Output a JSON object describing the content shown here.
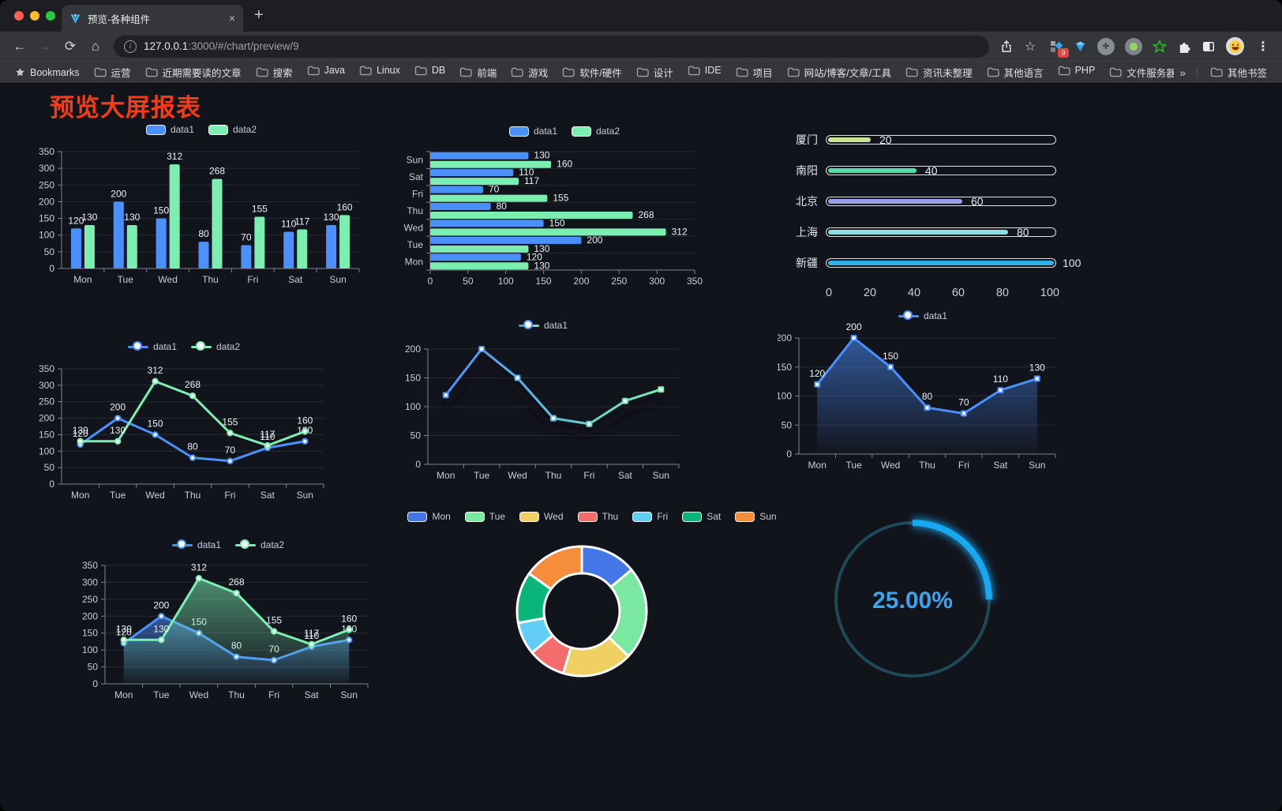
{
  "browser": {
    "tab_title": "预览-各种组件",
    "close_tab_label": "×",
    "new_tab_label": "+",
    "url_host": "127.0.0.1",
    "url_rest": ":3000/#/chart/preview/9",
    "icons": {
      "back": "←",
      "forward": "→",
      "reload": "⟳",
      "home": "⌂",
      "bookmark_star": "☆",
      "kebab": "⋮",
      "info": "i"
    },
    "extension_badge": "9",
    "bookmarks_bar": {
      "bookmarks_label": "Bookmarks",
      "folders": [
        "运营",
        "近期需要读的文章",
        "搜索",
        "Java",
        "Linux",
        "DB",
        "前端",
        "游戏",
        "软件/硬件",
        "设计",
        "IDE",
        "项目",
        "网站/博客/文章/工具",
        "资讯未整理",
        "其他语言",
        "PHP",
        "文件服务器"
      ],
      "overflow_label": "»",
      "other_bookmarks_label": "其他书签"
    }
  },
  "page": {
    "title": "预览大屏报表",
    "title_color": "#f63b17"
  },
  "chart_data": [
    {
      "id": "bar-vertical",
      "type": "bar",
      "title": "",
      "categories": [
        "Mon",
        "Tue",
        "Wed",
        "Thu",
        "Fri",
        "Sat",
        "Sun"
      ],
      "series": [
        {
          "name": "data1",
          "color": "#4a90ff",
          "values": [
            120,
            200,
            150,
            80,
            70,
            110,
            130
          ]
        },
        {
          "name": "data2",
          "color": "#7ceeb2",
          "values": [
            130,
            130,
            312,
            268,
            155,
            117,
            160
          ]
        }
      ],
      "ylim": [
        0,
        350
      ],
      "ytick_step": 50,
      "grid": true,
      "legend_position": "top",
      "show_labels": true
    },
    {
      "id": "bar-horizontal",
      "type": "bar-horizontal",
      "categories": [
        "Mon",
        "Tue",
        "Wed",
        "Thu",
        "Fri",
        "Sat",
        "Sun"
      ],
      "display_order_top_to_bottom": [
        "Sun",
        "Sat",
        "Fri",
        "Thu",
        "Wed",
        "Tue",
        "Mon"
      ],
      "series": [
        {
          "name": "data1",
          "color": "#4a90ff",
          "values": [
            120,
            200,
            150,
            80,
            70,
            110,
            130
          ]
        },
        {
          "name": "data2",
          "color": "#7ceeb2",
          "values": [
            130,
            130,
            312,
            268,
            155,
            117,
            160
          ]
        }
      ],
      "xlim": [
        0,
        350
      ],
      "xtick_step": 50,
      "grid": true,
      "legend_position": "top",
      "show_labels": true
    },
    {
      "id": "progress-bars",
      "type": "progress",
      "rows": [
        {
          "label": "厦门",
          "value": 20,
          "color": "#c7e794"
        },
        {
          "label": "南阳",
          "value": 40,
          "color": "#52dcab"
        },
        {
          "label": "北京",
          "value": 60,
          "color": "#9a9fe6"
        },
        {
          "label": "上海",
          "value": 80,
          "color": "#8fdce2"
        },
        {
          "label": "新疆",
          "value": 100,
          "color": "#2fb2e8"
        }
      ],
      "xticks": [
        0,
        20,
        40,
        60,
        80,
        100
      ],
      "max": 100
    },
    {
      "id": "line-basic",
      "type": "line",
      "categories": [
        "Mon",
        "Tue",
        "Wed",
        "Thu",
        "Fri",
        "Sat",
        "Sun"
      ],
      "series": [
        {
          "name": "data1",
          "color": "#4a90ff",
          "values": [
            120,
            200,
            150,
            80,
            70,
            110,
            130
          ]
        },
        {
          "name": "data2",
          "color": "#7ceeb2",
          "values": [
            130,
            130,
            312,
            268,
            155,
            117,
            160
          ]
        }
      ],
      "ylim": [
        0,
        350
      ],
      "ytick_step": 50,
      "grid": true,
      "legend_position": "top",
      "show_labels": true
    },
    {
      "id": "line-gradient",
      "type": "line",
      "categories": [
        "Mon",
        "Tue",
        "Wed",
        "Thu",
        "Fri",
        "Sat",
        "Sun"
      ],
      "series": [
        {
          "name": "data1",
          "color_start": "#4a90ff",
          "color_end": "#7ceeb2",
          "marker": "rect",
          "shadow": true,
          "values": [
            120,
            200,
            150,
            80,
            70,
            110,
            130
          ]
        }
      ],
      "ylim": [
        0,
        200
      ],
      "ytick_step": 50,
      "grid": true,
      "legend_position": "top",
      "show_labels": false
    },
    {
      "id": "line-area",
      "type": "line",
      "categories": [
        "Mon",
        "Tue",
        "Wed",
        "Thu",
        "Fri",
        "Sat",
        "Sun"
      ],
      "series": [
        {
          "name": "data1",
          "color": "#4a90ff",
          "area": true,
          "marker": "rect",
          "values": [
            120,
            200,
            150,
            80,
            70,
            110,
            130
          ]
        }
      ],
      "ylim": [
        0,
        200
      ],
      "ytick_step": 50,
      "grid": true,
      "legend_position": "top",
      "show_labels": true
    },
    {
      "id": "area-two-series",
      "type": "line",
      "categories": [
        "Mon",
        "Tue",
        "Wed",
        "Thu",
        "Fri",
        "Sat",
        "Sun"
      ],
      "series": [
        {
          "name": "data1",
          "color": "#4a90ff",
          "area": true,
          "values": [
            120,
            200,
            150,
            80,
            70,
            110,
            130
          ]
        },
        {
          "name": "data2",
          "color": "#7ceeb2",
          "area": true,
          "values": [
            130,
            130,
            312,
            268,
            155,
            117,
            160
          ]
        }
      ],
      "ylim": [
        0,
        350
      ],
      "ytick_step": 50,
      "grid": true,
      "legend_position": "top",
      "show_labels": true
    },
    {
      "id": "donut",
      "type": "pie",
      "legend_position": "top",
      "inner_radius_ratio": 0.58,
      "items": [
        {
          "label": "Mon",
          "value": 120,
          "color": "#4576e8"
        },
        {
          "label": "Tue",
          "value": 200,
          "color": "#7be8a2"
        },
        {
          "label": "Wed",
          "value": 150,
          "color": "#f0d060"
        },
        {
          "label": "Thu",
          "value": 80,
          "color": "#f56c6c"
        },
        {
          "label": "Fri",
          "value": 70,
          "color": "#62cef5"
        },
        {
          "label": "Sat",
          "value": 110,
          "color": "#09b578"
        },
        {
          "label": "Sun",
          "value": 130,
          "color": "#f58d3d"
        }
      ]
    },
    {
      "id": "gauge",
      "type": "gauge",
      "value": 25,
      "display": "25.00%",
      "color": "#18a8f0",
      "track_color": "#1e4a57",
      "text_color": "#3ba4ec"
    }
  ]
}
